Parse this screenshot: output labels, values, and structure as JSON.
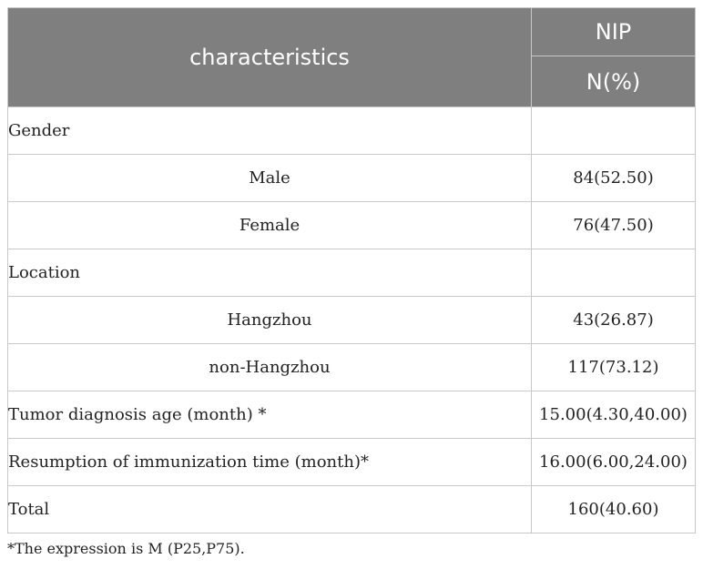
{
  "header": {
    "characteristics": "characteristics",
    "group": "NIP",
    "unit": "N(%)"
  },
  "rows": [
    {
      "label": "Gender",
      "value": ""
    },
    {
      "label": "Male",
      "value": "84(52.50)"
    },
    {
      "label": "Female",
      "value": "76(47.50)"
    },
    {
      "label": "Location",
      "value": ""
    },
    {
      "label": "Hangzhou",
      "value": "43(26.87)"
    },
    {
      "label": "non-Hangzhou",
      "value": "117(73.12)"
    },
    {
      "label": "Tumor diagnosis age (month) *",
      "value": "15.00(4.30,40.00)"
    },
    {
      "label": "Resumption of immunization time (month)*",
      "value": "16.00(6.00,24.00)"
    },
    {
      "label": "Total",
      "value": "160(40.60)"
    }
  ],
  "footnote": "*The expression is M (P25,P75)."
}
